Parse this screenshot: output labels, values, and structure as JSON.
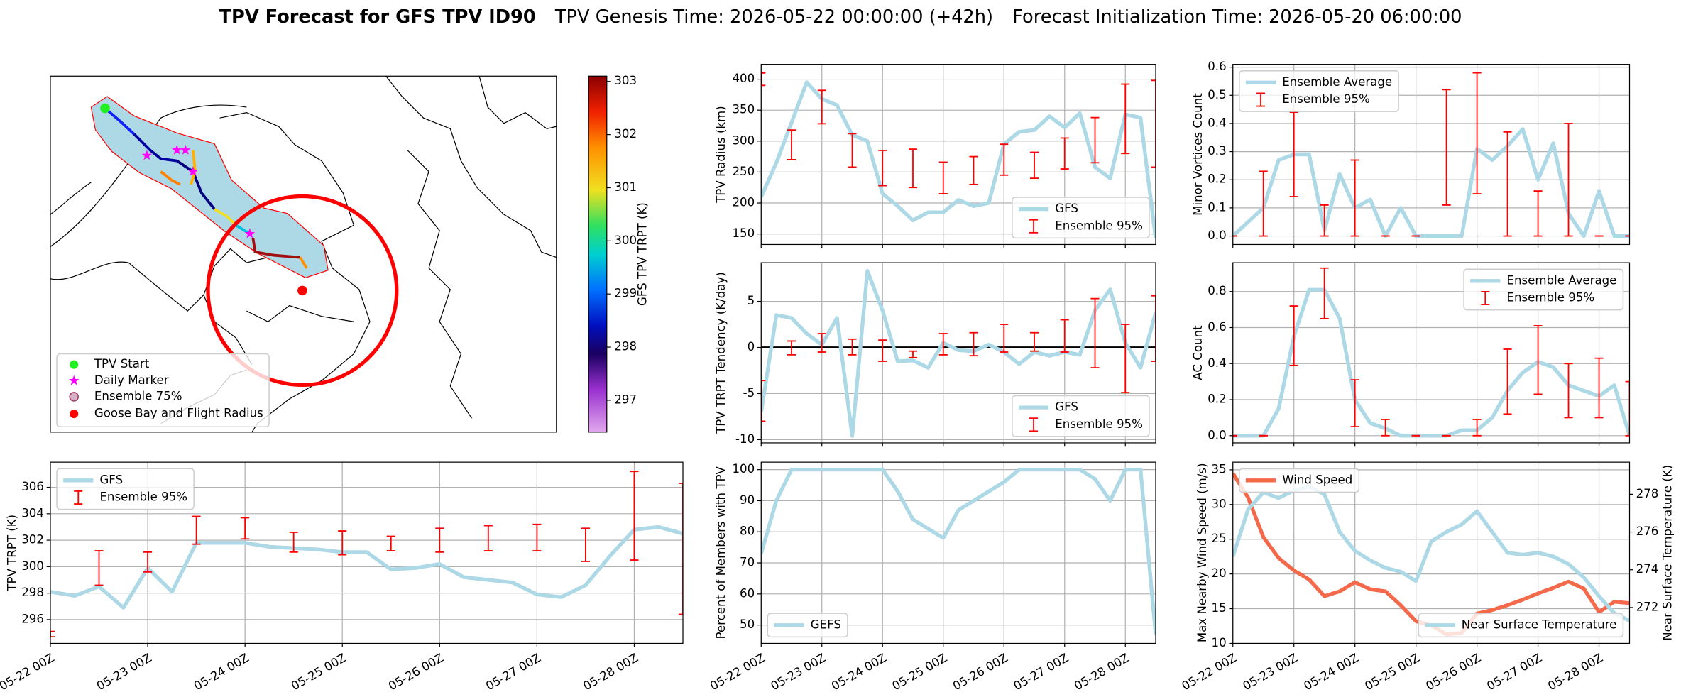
{
  "title": {
    "main": "TPV Forecast for GFS TPV ID90",
    "genesis": "TPV Genesis Time: 2026-05-22 00:00:00 (+42h)",
    "init": "Forecast Initialization Time: 2026-05-20 06:00:00"
  },
  "chart_data": [
    {
      "type": "map",
      "legend": [
        "TPV Start",
        "Daily Marker",
        "Ensemble 75%",
        "Goose Bay and Flight Radius"
      ],
      "colorbar": {
        "label": "GFS TPV TRPT (K)",
        "clim": [
          296.4,
          303.1
        ],
        "ticks": [
          297,
          298,
          299,
          300,
          301,
          302,
          303
        ]
      }
    },
    {
      "type": "line",
      "ylabel": "TPV Radius (km)",
      "legend": "lower right",
      "grid": true,
      "show_xtick_labels": false,
      "x": [
        "05-22 00Z",
        "05-22 06Z",
        "05-22 12Z",
        "05-22 18Z",
        "05-23 00Z",
        "05-23 06Z",
        "05-23 12Z",
        "05-23 18Z",
        "05-24 00Z",
        "05-24 06Z",
        "05-24 12Z",
        "05-24 18Z",
        "05-25 00Z",
        "05-25 06Z",
        "05-25 12Z",
        "05-25 18Z",
        "05-26 00Z",
        "05-26 06Z",
        "05-26 12Z",
        "05-26 18Z",
        "05-27 00Z",
        "05-27 06Z",
        "05-27 12Z",
        "05-27 18Z",
        "05-28 00Z",
        "05-28 06Z",
        "05-28 12Z"
      ],
      "xlim": [
        "05-22 00Z",
        "05-28 12Z"
      ],
      "xticks": [
        "05-22 00Z",
        "05-23 00Z",
        "05-24 00Z",
        "05-25 00Z",
        "05-26 00Z",
        "05-27 00Z",
        "05-28 00Z"
      ],
      "ylim": [
        133,
        424
      ],
      "yticks": [
        150,
        200,
        250,
        300,
        350,
        400
      ],
      "series": [
        {
          "name": "GFS",
          "color": "#add8e6",
          "values": [
            210,
            265,
            330,
            395,
            368,
            358,
            310,
            300,
            215,
            195,
            172,
            185,
            185,
            205,
            195,
            200,
            295,
            315,
            318,
            340,
            322,
            345,
            258,
            240,
            343,
            338,
            143
          ]
        }
      ],
      "error_bars": {
        "name": "Ensemble 95%",
        "color": "#ff0000",
        "x": [
          "05-22 00Z",
          "05-22 12Z",
          "05-23 00Z",
          "05-23 12Z",
          "05-24 00Z",
          "05-24 12Z",
          "05-25 00Z",
          "05-25 12Z",
          "05-26 00Z",
          "05-26 12Z",
          "05-27 00Z",
          "05-27 12Z",
          "05-28 00Z",
          "05-28 12Z"
        ],
        "low": [
          390,
          270,
          328,
          258,
          228,
          225,
          215,
          230,
          245,
          240,
          255,
          265,
          280,
          258
        ],
        "high": [
          410,
          318,
          382,
          312,
          285,
          287,
          266,
          275,
          295,
          282,
          305,
          338,
          392,
          398
        ]
      }
    },
    {
      "type": "line",
      "ylabel": "TPV TRPT Tendency (K/day)",
      "legend": "lower right",
      "grid": true,
      "show_xtick_labels": false,
      "hline": 0,
      "x": [
        "05-22 00Z",
        "05-22 06Z",
        "05-22 12Z",
        "05-22 18Z",
        "05-23 00Z",
        "05-23 06Z",
        "05-23 12Z",
        "05-23 18Z",
        "05-24 00Z",
        "05-24 06Z",
        "05-24 12Z",
        "05-24 18Z",
        "05-25 00Z",
        "05-25 06Z",
        "05-25 12Z",
        "05-25 18Z",
        "05-26 00Z",
        "05-26 06Z",
        "05-26 12Z",
        "05-26 18Z",
        "05-27 00Z",
        "05-27 06Z",
        "05-27 12Z",
        "05-27 18Z",
        "05-28 00Z",
        "05-28 06Z",
        "05-28 12Z"
      ],
      "xlim": [
        "05-22 00Z",
        "05-28 12Z"
      ],
      "xticks": [
        "05-22 00Z",
        "05-23 00Z",
        "05-24 00Z",
        "05-25 00Z",
        "05-26 00Z",
        "05-27 00Z",
        "05-28 00Z"
      ],
      "ylim": [
        -10.35,
        9.19
      ],
      "yticks": [
        -10,
        -5,
        0,
        5
      ],
      "series": [
        {
          "name": "GFS",
          "color": "#add8e6",
          "values": [
            -7,
            3.5,
            3.2,
            1.5,
            0.3,
            3.2,
            -9.6,
            8.3,
            4.0,
            -1.5,
            -1.4,
            -2.2,
            0.5,
            -0.3,
            -0.4,
            0.3,
            -0.5,
            -1.8,
            -0.5,
            -0.9,
            -0.5,
            -0.8,
            4.0,
            6.3,
            0.5,
            -2.2,
            3.8
          ]
        }
      ],
      "error_bars": {
        "name": "Ensemble 95%",
        "color": "#ff0000",
        "x": [
          "05-22 00Z",
          "05-22 12Z",
          "05-23 00Z",
          "05-23 12Z",
          "05-24 00Z",
          "05-24 12Z",
          "05-25 00Z",
          "05-25 12Z",
          "05-26 00Z",
          "05-26 12Z",
          "05-27 00Z",
          "05-27 12Z",
          "05-28 00Z",
          "05-28 12Z"
        ],
        "low": [
          -8,
          -0.8,
          -0.5,
          -0.8,
          -1.5,
          -1.1,
          -0.8,
          -0.9,
          -0.5,
          -0.4,
          -0.5,
          -2.2,
          -4.9,
          -1.5
        ],
        "high": [
          -3.6,
          0.7,
          1.5,
          0.9,
          0.8,
          -0.4,
          1.5,
          1.6,
          2.5,
          1.6,
          3.0,
          5.3,
          2.5,
          5.6
        ]
      }
    },
    {
      "type": "line",
      "ylabel": "Minor Vortices Count",
      "legend": "upper left",
      "grid": true,
      "show_xtick_labels": false,
      "x": [
        "05-22 00Z",
        "05-22 06Z",
        "05-22 12Z",
        "05-22 18Z",
        "05-23 00Z",
        "05-23 06Z",
        "05-23 12Z",
        "05-23 18Z",
        "05-24 00Z",
        "05-24 06Z",
        "05-24 12Z",
        "05-24 18Z",
        "05-25 00Z",
        "05-25 06Z",
        "05-25 12Z",
        "05-25 18Z",
        "05-26 00Z",
        "05-26 06Z",
        "05-26 12Z",
        "05-26 18Z",
        "05-27 00Z",
        "05-27 06Z",
        "05-27 12Z",
        "05-27 18Z",
        "05-28 00Z",
        "05-28 06Z",
        "05-28 12Z"
      ],
      "xlim": [
        "05-22 00Z",
        "05-28 12Z"
      ],
      "xticks": [
        "05-22 00Z",
        "05-23 00Z",
        "05-24 00Z",
        "05-25 00Z",
        "05-26 00Z",
        "05-27 00Z",
        "05-28 00Z"
      ],
      "ylim": [
        -0.03,
        0.61
      ],
      "yticks": [
        {
          "value": 0,
          "label": "0.0"
        },
        0.1,
        0.2,
        0.3,
        0.4,
        0.5,
        0.6
      ],
      "series": [
        {
          "name": "Ensemble Average",
          "color": "#add8e6",
          "values": [
            0,
            0.05,
            0.1,
            0.27,
            0.29,
            0.29,
            0.02,
            0.22,
            0.1,
            0.13,
            0,
            0.1,
            0,
            0,
            0,
            0,
            0.31,
            0.27,
            0.32,
            0.38,
            0.2,
            0.33,
            0.08,
            0,
            0.16,
            0,
            0
          ]
        }
      ],
      "error_bars": {
        "name": "Ensemble 95%",
        "color": "#ff0000",
        "x": [
          "05-22 00Z",
          "05-22 12Z",
          "05-23 00Z",
          "05-23 12Z",
          "05-24 00Z",
          "05-24 12Z",
          "05-25 00Z",
          "05-25 12Z",
          "05-26 00Z",
          "05-26 12Z",
          "05-27 00Z",
          "05-27 12Z",
          "05-28 00Z",
          "05-28 12Z"
        ],
        "low": [
          0,
          0,
          0.14,
          0,
          0,
          0,
          0,
          0.11,
          0.15,
          0,
          0,
          0,
          0,
          0
        ],
        "high": [
          0,
          0.23,
          0.44,
          0.11,
          0.27,
          0,
          0,
          0.52,
          0.58,
          0.37,
          0.16,
          0.4,
          0,
          0
        ]
      }
    },
    {
      "type": "line",
      "ylabel": "TPV TRPT (K)",
      "legend": "upper left",
      "grid": true,
      "show_xtick_labels": true,
      "x": [
        "05-22 00Z",
        "05-22 06Z",
        "05-22 12Z",
        "05-22 18Z",
        "05-23 00Z",
        "05-23 06Z",
        "05-23 12Z",
        "05-23 18Z",
        "05-24 00Z",
        "05-24 06Z",
        "05-24 12Z",
        "05-24 18Z",
        "05-25 00Z",
        "05-25 06Z",
        "05-25 12Z",
        "05-25 18Z",
        "05-26 00Z",
        "05-26 06Z",
        "05-26 12Z",
        "05-26 18Z",
        "05-27 00Z",
        "05-27 06Z",
        "05-27 12Z",
        "05-27 18Z",
        "05-28 00Z",
        "05-28 06Z",
        "05-28 12Z"
      ],
      "xlim": [
        "05-22 00Z",
        "05-28 12Z"
      ],
      "xticks": [
        "05-22 00Z",
        "05-23 00Z",
        "05-24 00Z",
        "05-25 00Z",
        "05-26 00Z",
        "05-27 00Z",
        "05-28 00Z"
      ],
      "ylim": [
        294.2,
        307.9
      ],
      "yticks": [
        296,
        298,
        300,
        302,
        304,
        306
      ],
      "series": [
        {
          "name": "GFS",
          "color": "#add8e6",
          "values": [
            298.1,
            297.8,
            298.5,
            296.9,
            299.9,
            298.1,
            301.8,
            301.8,
            301.8,
            301.5,
            301.4,
            301.3,
            301.1,
            301.1,
            299.8,
            299.9,
            300.2,
            299.2,
            299.0,
            298.8,
            297.9,
            297.7,
            298.6,
            300.8,
            302.8,
            303.0,
            302.5
          ]
        }
      ],
      "error_bars": {
        "name": "Ensemble 95%",
        "color": "#ff0000",
        "x": [
          "05-22 00Z",
          "05-22 12Z",
          "05-23 00Z",
          "05-23 12Z",
          "05-24 00Z",
          "05-24 12Z",
          "05-25 00Z",
          "05-25 12Z",
          "05-26 00Z",
          "05-26 12Z",
          "05-27 00Z",
          "05-27 12Z",
          "05-28 00Z",
          "05-28 12Z"
        ],
        "low": [
          294.7,
          298.6,
          299.6,
          301.7,
          302.1,
          301.1,
          300.9,
          301.2,
          301.1,
          301.2,
          301.2,
          300.4,
          300.5,
          296.4
        ],
        "high": [
          295.1,
          301.2,
          301.1,
          303.8,
          303.7,
          302.6,
          302.7,
          302.3,
          302.9,
          303.1,
          303.2,
          302.9,
          307.2,
          306.3
        ]
      }
    },
    {
      "type": "line",
      "ylabel": "Percent of Members with TPV",
      "legend": "lower left",
      "grid": true,
      "show_xtick_labels": true,
      "x": [
        "05-22 00Z",
        "05-22 06Z",
        "05-22 12Z",
        "05-22 18Z",
        "05-23 00Z",
        "05-23 06Z",
        "05-23 12Z",
        "05-23 18Z",
        "05-24 00Z",
        "05-24 06Z",
        "05-24 12Z",
        "05-24 18Z",
        "05-25 00Z",
        "05-25 06Z",
        "05-25 12Z",
        "05-25 18Z",
        "05-26 00Z",
        "05-26 06Z",
        "05-26 12Z",
        "05-26 18Z",
        "05-27 00Z",
        "05-27 06Z",
        "05-27 12Z",
        "05-27 18Z",
        "05-28 00Z",
        "05-28 06Z",
        "05-28 12Z"
      ],
      "xlim": [
        "05-22 00Z",
        "05-28 12Z"
      ],
      "xticks": [
        "05-22 00Z",
        "05-23 00Z",
        "05-24 00Z",
        "05-25 00Z",
        "05-26 00Z",
        "05-27 00Z",
        "05-28 00Z"
      ],
      "ylim": [
        44.1,
        102.4
      ],
      "yticks": [
        50,
        60,
        70,
        80,
        90,
        100
      ],
      "series": [
        {
          "name": "GEFS",
          "color": "#add8e6",
          "values": [
            73,
            90,
            100,
            100,
            100,
            100,
            100,
            100,
            100,
            93,
            84,
            81,
            78,
            87,
            90,
            93,
            96,
            100,
            100,
            100,
            100,
            100,
            97,
            90,
            100,
            100,
            47
          ]
        }
      ]
    },
    {
      "type": "line",
      "ylabel": "AC Count",
      "legend": "upper right",
      "grid": true,
      "show_xtick_labels": false,
      "x": [
        "05-22 00Z",
        "05-22 06Z",
        "05-22 12Z",
        "05-22 18Z",
        "05-23 00Z",
        "05-23 06Z",
        "05-23 12Z",
        "05-23 18Z",
        "05-24 00Z",
        "05-24 06Z",
        "05-24 12Z",
        "05-24 18Z",
        "05-25 00Z",
        "05-25 06Z",
        "05-25 12Z",
        "05-25 18Z",
        "05-26 00Z",
        "05-26 06Z",
        "05-26 12Z",
        "05-26 18Z",
        "05-27 00Z",
        "05-27 06Z",
        "05-27 12Z",
        "05-27 18Z",
        "05-28 00Z",
        "05-28 06Z",
        "05-28 12Z"
      ],
      "xlim": [
        "05-22 00Z",
        "05-28 12Z"
      ],
      "xticks": [
        "05-22 00Z",
        "05-23 00Z",
        "05-24 00Z",
        "05-25 00Z",
        "05-26 00Z",
        "05-27 00Z",
        "05-28 00Z"
      ],
      "ylim": [
        -0.04,
        0.96
      ],
      "yticks": [
        {
          "value": 0,
          "label": "0.0"
        },
        0.2,
        0.4,
        0.6,
        0.8
      ],
      "series": [
        {
          "name": "Ensemble Average",
          "color": "#add8e6",
          "values": [
            0,
            0,
            0,
            0.15,
            0.55,
            0.81,
            0.81,
            0.65,
            0.2,
            0.07,
            0.04,
            0,
            0,
            0,
            0,
            0.03,
            0.03,
            0.1,
            0.25,
            0.35,
            0.41,
            0.38,
            0.28,
            0.25,
            0.22,
            0.28,
            0
          ]
        }
      ],
      "error_bars": {
        "name": "Ensemble 95%",
        "color": "#ff0000",
        "x": [
          "05-22 00Z",
          "05-22 12Z",
          "05-23 00Z",
          "05-23 12Z",
          "05-24 00Z",
          "05-24 12Z",
          "05-25 00Z",
          "05-25 12Z",
          "05-26 00Z",
          "05-26 12Z",
          "05-27 00Z",
          "05-27 12Z",
          "05-28 00Z",
          "05-28 12Z"
        ],
        "low": [
          0,
          0,
          0.39,
          0.65,
          0.05,
          0,
          0,
          0,
          0,
          0.12,
          0.23,
          0.1,
          0.1,
          0
        ],
        "high": [
          0,
          0,
          0.72,
          0.93,
          0.31,
          0.09,
          0,
          0,
          0.09,
          0.48,
          0.61,
          0.4,
          0.43,
          0.3
        ]
      }
    },
    {
      "type": "line",
      "ylabel": "Max Nearby Wind Speed (m/s)",
      "ylabel_color": "#f4694a",
      "y2label": "Near Surface Temperature (K)",
      "y2label_color": "#4169e1",
      "legend": "upper left",
      "grid": true,
      "show_xtick_labels": true,
      "x": [
        "05-22 00Z",
        "05-22 06Z",
        "05-22 12Z",
        "05-22 18Z",
        "05-23 00Z",
        "05-23 06Z",
        "05-23 12Z",
        "05-23 18Z",
        "05-24 00Z",
        "05-24 06Z",
        "05-24 12Z",
        "05-24 18Z",
        "05-25 00Z",
        "05-25 06Z",
        "05-25 12Z",
        "05-25 18Z",
        "05-26 00Z",
        "05-26 06Z",
        "05-26 12Z",
        "05-26 18Z",
        "05-27 00Z",
        "05-27 06Z",
        "05-27 12Z",
        "05-27 18Z",
        "05-28 00Z",
        "05-28 06Z",
        "05-28 12Z"
      ],
      "xlim": [
        "05-22 00Z",
        "05-28 12Z"
      ],
      "xticks": [
        "05-22 00Z",
        "05-23 00Z",
        "05-24 00Z",
        "05-25 00Z",
        "05-26 00Z",
        "05-27 00Z",
        "05-28 00Z"
      ],
      "ylim": [
        10,
        36.1
      ],
      "yticks": [
        10,
        15,
        20,
        25,
        30,
        35
      ],
      "y2lim": [
        270.1,
        279.7
      ],
      "y2ticks": [
        272,
        274,
        276,
        278
      ],
      "series": [
        {
          "name": "Wind Speed",
          "color": "#f4694a",
          "values": [
            34.5,
            31.0,
            25.3,
            22.3,
            20.5,
            19.2,
            16.8,
            17.5,
            18.8,
            17.8,
            17.5,
            15.5,
            13.2,
            12.6,
            11.3,
            11.5,
            14.3,
            14.8,
            15.5,
            16.3,
            17.2,
            18.0,
            18.9,
            17.9,
            14.5,
            16.0,
            15.8
          ]
        },
        {
          "name": "Near Surface Temperature",
          "color": "#add8e6",
          "axis": "y2",
          "legend": "lower right",
          "values": [
            274.7,
            277.2,
            278.1,
            277.8,
            278.2,
            278.4,
            278.0,
            276.0,
            275.0,
            274.5,
            274.1,
            273.9,
            273.4,
            275.5,
            276.0,
            276.4,
            277.1,
            276.0,
            274.9,
            274.8,
            274.9,
            274.7,
            274.3,
            273.6,
            272.6,
            271.7,
            271.3
          ]
        }
      ]
    }
  ]
}
